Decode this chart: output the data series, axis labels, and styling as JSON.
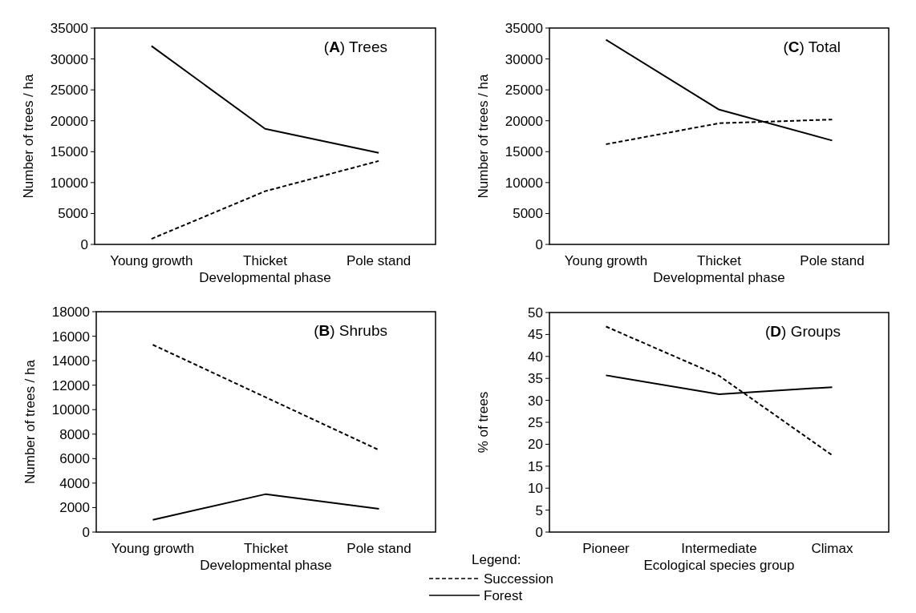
{
  "chart_data": [
    {
      "type": "line",
      "title": "(A) Trees",
      "xlabel": "Developmental phase",
      "ylabel": "Number of trees / ha",
      "categories": [
        "Young growth",
        "Thicket",
        "Pole stand"
      ],
      "ylim": [
        0,
        35000
      ],
      "yticks": [
        0,
        5000,
        10000,
        15000,
        20000,
        25000,
        30000,
        35000
      ],
      "grid": false,
      "legend": false,
      "series": [
        {
          "color": "#000000",
          "line_style": "solid",
          "values": [
            32100,
            18700,
            14800
          ]
        },
        {
          "color": "#000000",
          "line_style": "dashed",
          "values": [
            900,
            8600,
            13500
          ]
        }
      ]
    },
    {
      "type": "line",
      "title": "(C) Total",
      "xlabel": "Developmental phase",
      "ylabel": "Number of trees / ha",
      "categories": [
        "Young growth",
        "Thicket",
        "Pole stand"
      ],
      "ylim": [
        0,
        35000
      ],
      "yticks": [
        0,
        5000,
        10000,
        15000,
        20000,
        25000,
        30000,
        35000
      ],
      "grid": false,
      "legend": false,
      "series": [
        {
          "color": "#000000",
          "line_style": "solid",
          "values": [
            33100,
            21800,
            16800
          ]
        },
        {
          "color": "#000000",
          "line_style": "dashed",
          "values": [
            16200,
            19600,
            20200
          ]
        }
      ]
    },
    {
      "type": "line",
      "title": "(B) Shrubs",
      "xlabel": "Developmental phase",
      "ylabel": "Number of trees / ha",
      "categories": [
        "Young growth",
        "Thicket",
        "Pole stand"
      ],
      "ylim": [
        0,
        18000
      ],
      "yticks": [
        0,
        2000,
        4000,
        6000,
        8000,
        10000,
        12000,
        14000,
        16000,
        18000
      ],
      "grid": false,
      "legend": "bottom right",
      "legend_title": "Legend:",
      "series": [
        {
          "name": "Succession",
          "color": "#000000",
          "line_style": "dashed",
          "values": [
            15300,
            11000,
            6700
          ]
        },
        {
          "name": "Forest",
          "color": "#000000",
          "line_style": "solid",
          "values": [
            1000,
            3100,
            1900
          ]
        }
      ]
    },
    {
      "type": "line",
      "title": "(D) Groups",
      "xlabel": "Ecological species group",
      "ylabel": "% of trees",
      "categories": [
        "Pioneer",
        "Intermediate",
        "Climax"
      ],
      "ylim": [
        0,
        50
      ],
      "yticks": [
        0,
        5,
        10,
        15,
        20,
        25,
        30,
        35,
        40,
        45,
        50
      ],
      "grid": false,
      "legend": false,
      "series": [
        {
          "color": "#000000",
          "line_style": "dashed",
          "values": [
            46.8,
            35.6,
            17.5
          ]
        },
        {
          "color": "#000000",
          "line_style": "solid",
          "values": [
            35.7,
            31.4,
            33.0
          ]
        }
      ]
    }
  ]
}
